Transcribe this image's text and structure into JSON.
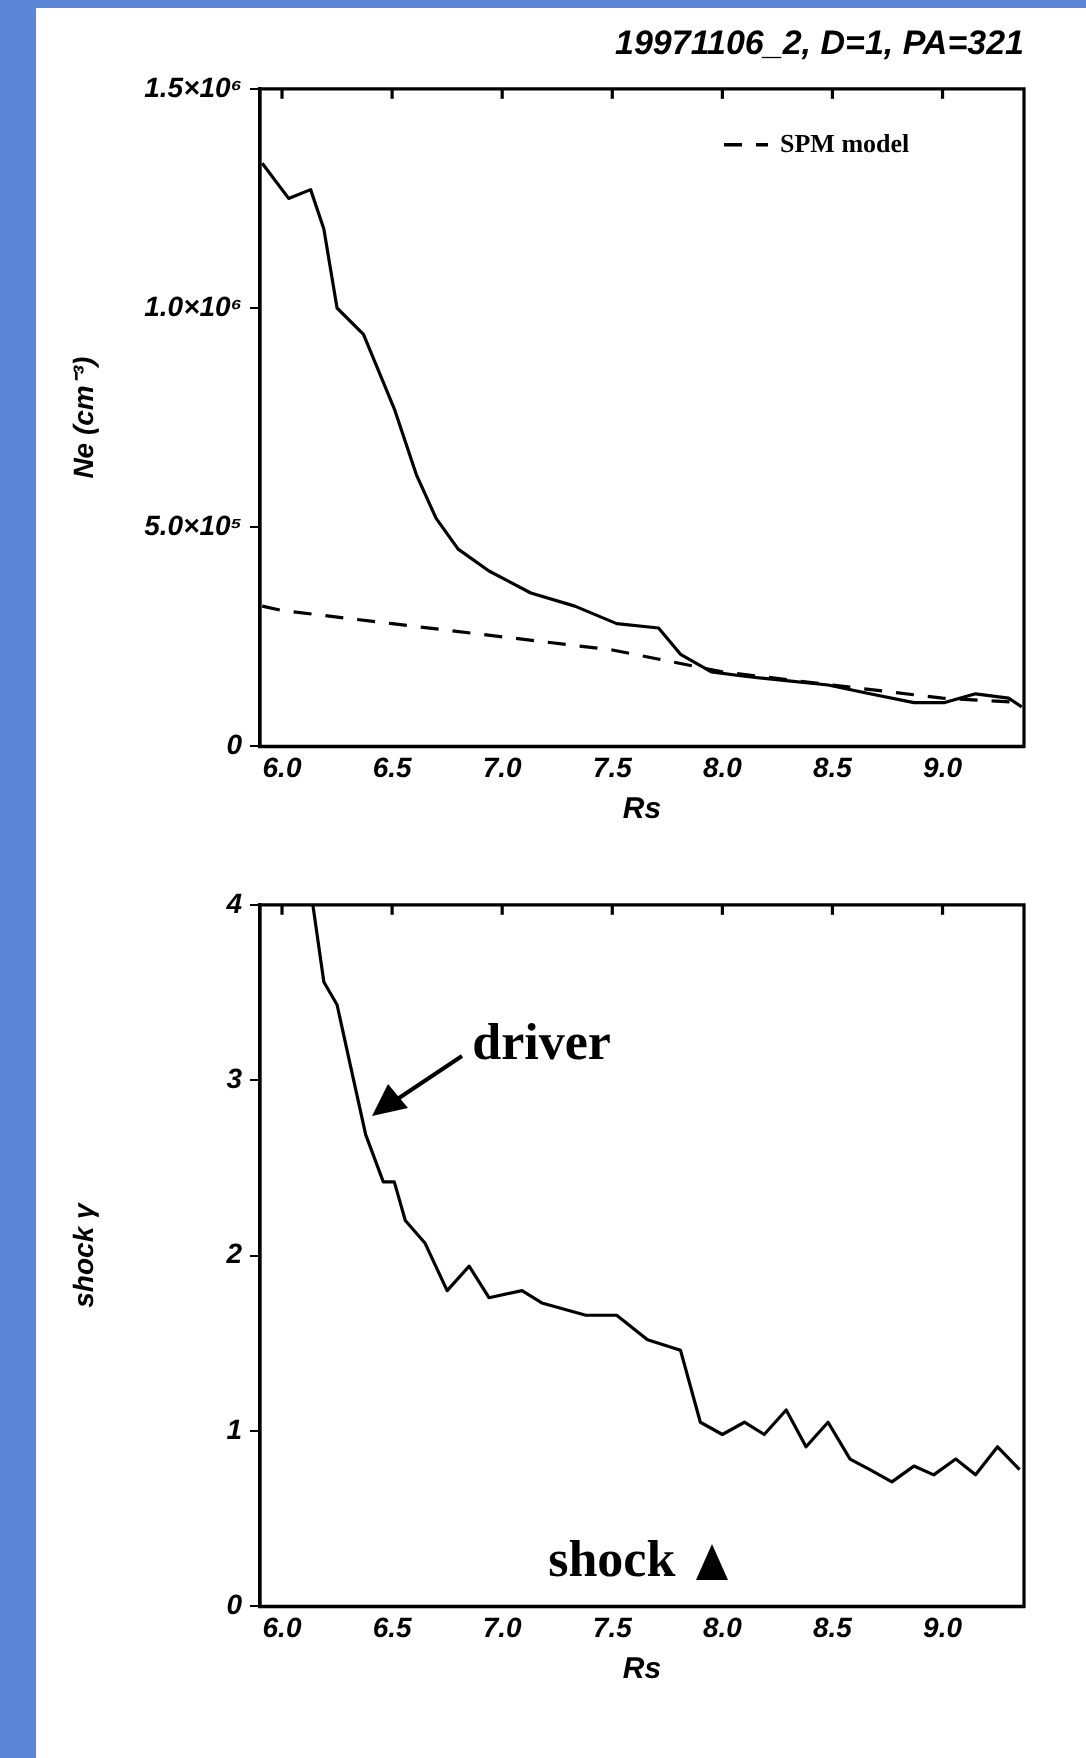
{
  "chart_data": [
    {
      "type": "line",
      "title": "19971106_2, D=1, PA=321",
      "xlabel": "Rs",
      "ylabel": "Ne (cm⁻³)",
      "xlim": [
        5.9,
        9.37
      ],
      "xticks": [
        {
          "value": 6,
          "label": "6.0"
        },
        {
          "value": 6.5,
          "label": "6.5"
        },
        {
          "value": 7,
          "label": "7.0"
        },
        {
          "value": 7.5,
          "label": "7.5"
        },
        {
          "value": 8,
          "label": "8.0"
        },
        {
          "value": 8.5,
          "label": "8.5"
        },
        {
          "value": 9,
          "label": "9.0"
        }
      ],
      "ylim": [
        0,
        1500000
      ],
      "yticks": [
        0,
        {
          "value": 500000,
          "label": "5.0×10⁵"
        },
        {
          "value": 1000000,
          "label": "1.0×10⁶"
        },
        {
          "value": 1500000,
          "label": "1.5×10⁶"
        }
      ],
      "grid": false,
      "legend": "top right",
      "series": [
        {
          "color": "#000000",
          "line_style": "solid",
          "x": [
            5.91,
            6.03,
            6.13,
            6.19,
            6.25,
            6.37,
            6.51,
            6.61,
            6.7,
            6.8,
            6.94,
            7.13,
            7.33,
            7.52,
            7.71,
            7.81,
            7.95,
            8.1,
            8.29,
            8.48,
            8.67,
            8.87,
            9.01,
            9.15,
            9.3,
            9.36
          ],
          "values": [
            1330000,
            1250000,
            1270000,
            1180000,
            1000000,
            940000,
            770000,
            620000,
            520000,
            450000,
            400000,
            350000,
            320000,
            280000,
            270000,
            210000,
            170000,
            160000,
            150000,
            140000,
            120000,
            100000,
            100000,
            120000,
            110000,
            90000
          ]
        },
        {
          "name": "SPM model",
          "color": "#000000",
          "line_style": "dashed",
          "x": [
            5.91,
            6.0,
            6.5,
            7.0,
            7.5,
            8.0,
            8.5,
            9.0,
            9.36
          ],
          "values": [
            320000,
            310000,
            280000,
            250000,
            220000,
            170000,
            140000,
            110000,
            100000
          ]
        }
      ]
    },
    {
      "type": "line",
      "xlabel": "Rs",
      "ylabel": "shock γ",
      "xlim": [
        5.9,
        9.37
      ],
      "xticks": [
        {
          "value": 6,
          "label": "6.0"
        },
        {
          "value": 6.5,
          "label": "6.5"
        },
        {
          "value": 7,
          "label": "7.0"
        },
        {
          "value": 7.5,
          "label": "7.5"
        },
        {
          "value": 8,
          "label": "8.0"
        },
        {
          "value": 8.5,
          "label": "8.5"
        },
        {
          "value": 9,
          "label": "9.0"
        }
      ],
      "ylim": [
        0,
        4
      ],
      "yticks": [
        0,
        1,
        2,
        3,
        4
      ],
      "grid": false,
      "annotations": [
        {
          "text": "driver",
          "x": 6.41,
          "y": 2.8
        },
        {
          "text": "shock",
          "x": 7.95,
          "y": 0.25
        }
      ],
      "series": [
        {
          "color": "#000000",
          "line_style": "solid",
          "x": [
            6.14,
            6.19,
            6.25,
            6.32,
            6.38,
            6.46,
            6.51,
            6.56,
            6.65,
            6.75,
            6.85,
            6.94,
            7.09,
            7.18,
            7.38,
            7.52,
            7.66,
            7.81,
            7.9,
            8.0,
            8.1,
            8.19,
            8.29,
            8.38,
            8.48,
            8.58,
            8.67,
            8.77,
            8.87,
            8.96,
            9.06,
            9.15,
            9.25,
            9.35
          ],
          "values": [
            4.0,
            3.56,
            3.43,
            3.03,
            2.69,
            2.42,
            2.42,
            2.2,
            2.07,
            1.8,
            1.94,
            1.76,
            1.8,
            1.73,
            1.66,
            1.66,
            1.52,
            1.46,
            1.05,
            0.98,
            1.05,
            0.98,
            1.12,
            0.91,
            1.05,
            0.84,
            0.78,
            0.71,
            0.8,
            0.75,
            0.84,
            0.75,
            0.91,
            0.78
          ]
        }
      ]
    }
  ]
}
